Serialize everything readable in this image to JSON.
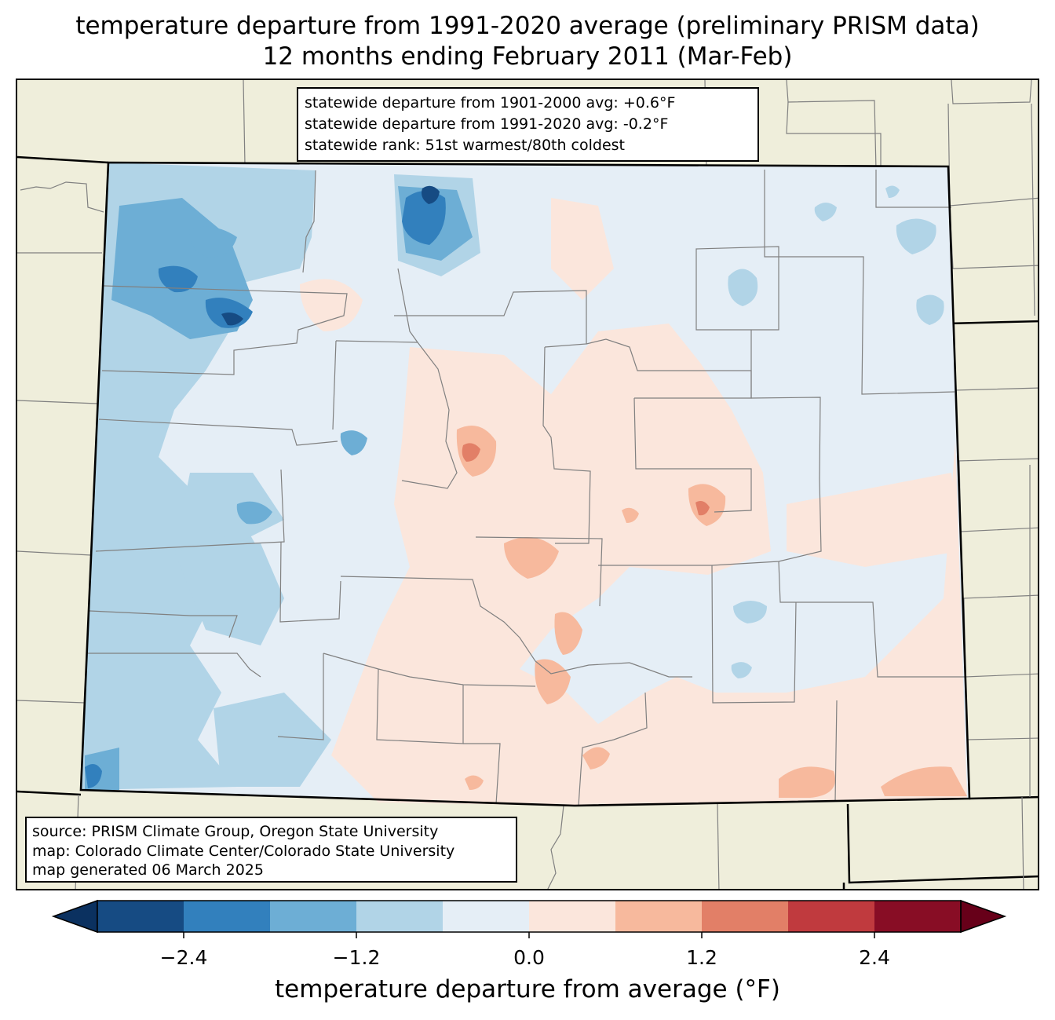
{
  "title": {
    "line1": "temperature departure from 1991-2020 average (preliminary PRISM data)",
    "line2": "12 months ending February 2011 (Mar-Feb)"
  },
  "stats_box": {
    "line1": "statewide departure from 1901-2000 avg: +0.6°F",
    "line2": "statewide departure from 1991-2020 avg: -0.2°F",
    "line3": "statewide rank: 51st warmest/80th coldest"
  },
  "source_box": {
    "line1": "source: PRISM Climate Group, Oregon State University",
    "line2": "map: Colorado Climate Center/Colorado State University",
    "line3": "map generated 06 March 2025"
  },
  "colorbar": {
    "label": "temperature departure from average (°F)",
    "ticks": [
      "−2.4",
      "−1.2",
      "0.0",
      "1.2",
      "2.4"
    ],
    "boundaries": [
      -3.0,
      -2.4,
      -1.8,
      -1.2,
      -0.6,
      0.0,
      0.6,
      1.2,
      1.8,
      2.4,
      3.0
    ],
    "colors": [
      "#164b83",
      "#3280bd",
      "#6daed5",
      "#b1d4e7",
      "#e5eef6",
      "#fbe6dc",
      "#f7b99d",
      "#e27f67",
      "#c03a3e",
      "#880d25"
    ],
    "extend_low_color": "#0b3160",
    "extend_high_color": "#670019"
  },
  "colors": {
    "background_land": "#efeedb",
    "state_border": "#000000",
    "county_border": "#808080"
  }
}
